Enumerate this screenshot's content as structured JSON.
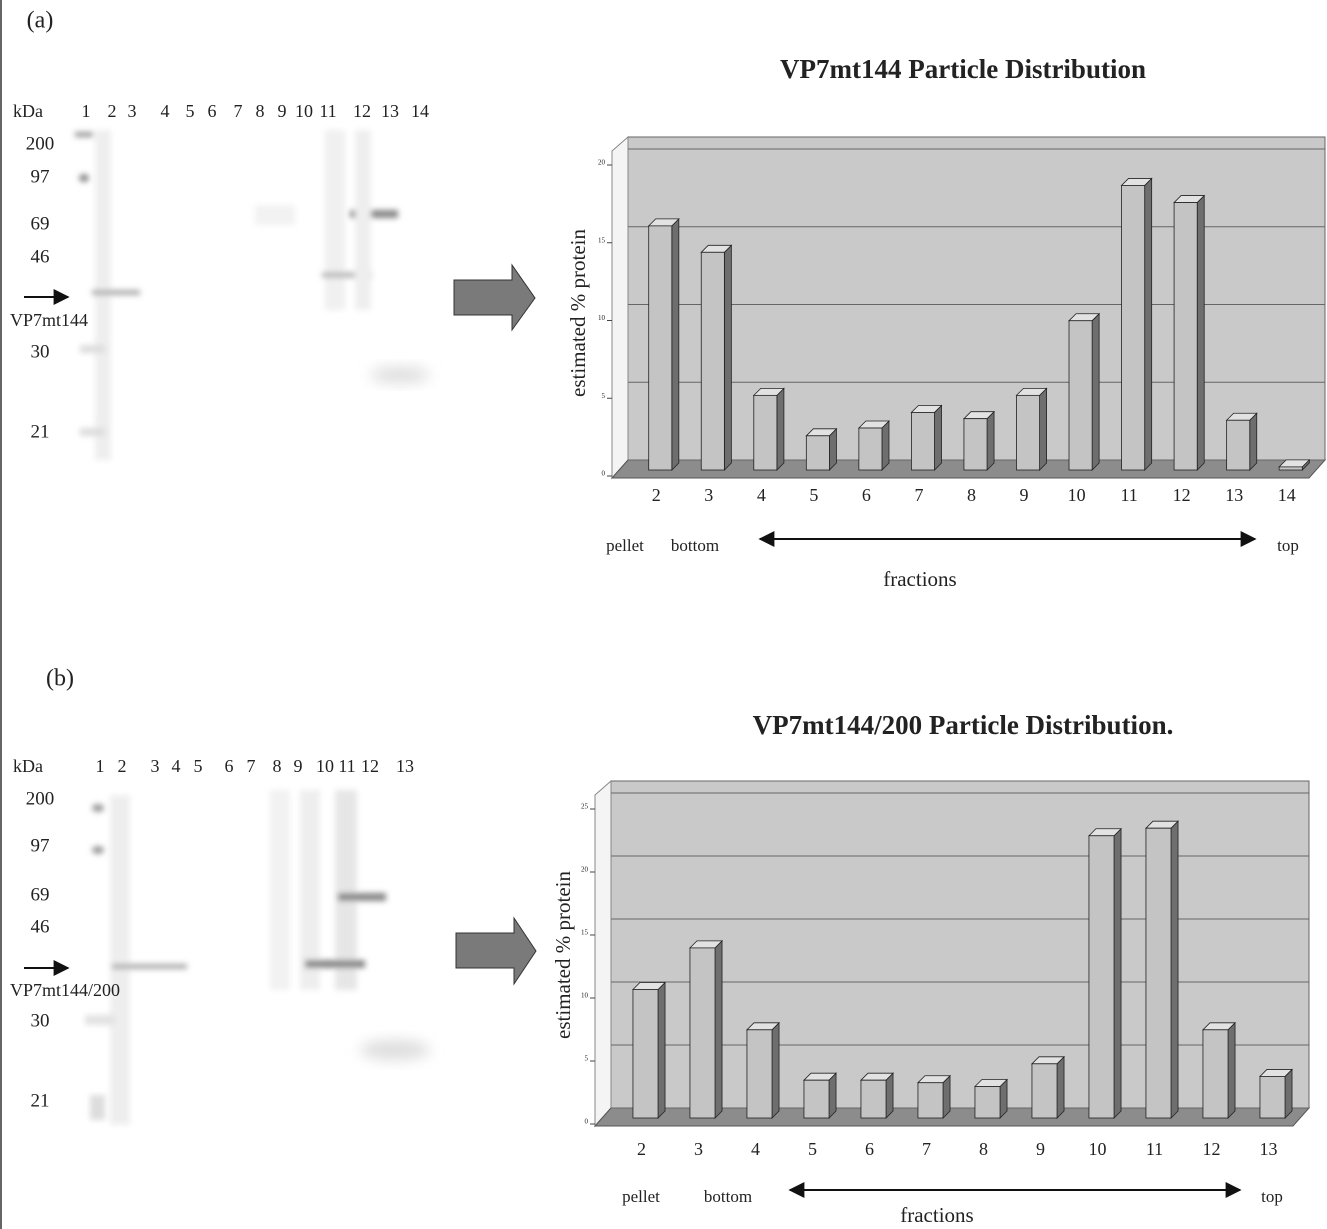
{
  "panels": [
    {
      "label": "(a)",
      "gel": {
        "unit": "kDa",
        "lanes": [
          "1",
          "2",
          "3",
          "4",
          "5",
          "6",
          "7",
          "8",
          "9",
          "10",
          "11",
          "12",
          "13",
          "14"
        ],
        "markers": [
          200,
          97,
          69,
          46,
          30,
          21
        ],
        "protein": "VP7mt144"
      }
    },
    {
      "label": "(b)",
      "gel": {
        "unit": "kDa",
        "lanes": [
          "1",
          "2",
          "3",
          "4",
          "5",
          "6",
          "7",
          "8",
          "9",
          "10",
          "11",
          "12",
          "13"
        ],
        "markers": [
          200,
          97,
          69,
          46,
          30,
          21
        ],
        "protein": "VP7mt144/200"
      }
    }
  ],
  "chart_data": [
    {
      "type": "bar",
      "title": "VP7mt144 Particle Distribution",
      "y_label": "estimated % protein",
      "x_label": "fractions",
      "annotations": {
        "left": [
          "pellet",
          "bottom"
        ],
        "right": "top"
      },
      "categories": [
        "2",
        "3",
        "4",
        "5",
        "6",
        "7",
        "8",
        "9",
        "10",
        "11",
        "12",
        "13",
        "14"
      ],
      "values": [
        15.7,
        14,
        4.8,
        2.2,
        2.7,
        3.7,
        3.3,
        4.8,
        9.6,
        18.3,
        17.2,
        3.2,
        0.2
      ],
      "color": "#c4c4c4",
      "ylim": [
        0,
        20
      ],
      "yticks": [
        0,
        5,
        10,
        15,
        20
      ],
      "grid": true
    },
    {
      "type": "bar",
      "title": "VP7mt144/200 Particle Distribution.",
      "y_label": "estimated % protein",
      "x_label": "fractions",
      "annotations": {
        "left": [
          "pellet",
          "bottom"
        ],
        "right": "top"
      },
      "categories": [
        "2",
        "3",
        "4",
        "5",
        "6",
        "7",
        "8",
        "9",
        "10",
        "11",
        "12",
        "13"
      ],
      "values": [
        10.2,
        13.5,
        7,
        3,
        3,
        2.8,
        2.5,
        4.3,
        22.4,
        23,
        7,
        3.3
      ],
      "color": "#c4c4c4",
      "ylim": [
        0,
        25
      ],
      "yticks": [
        0,
        5,
        10,
        15,
        20,
        25
      ],
      "grid": true
    }
  ]
}
